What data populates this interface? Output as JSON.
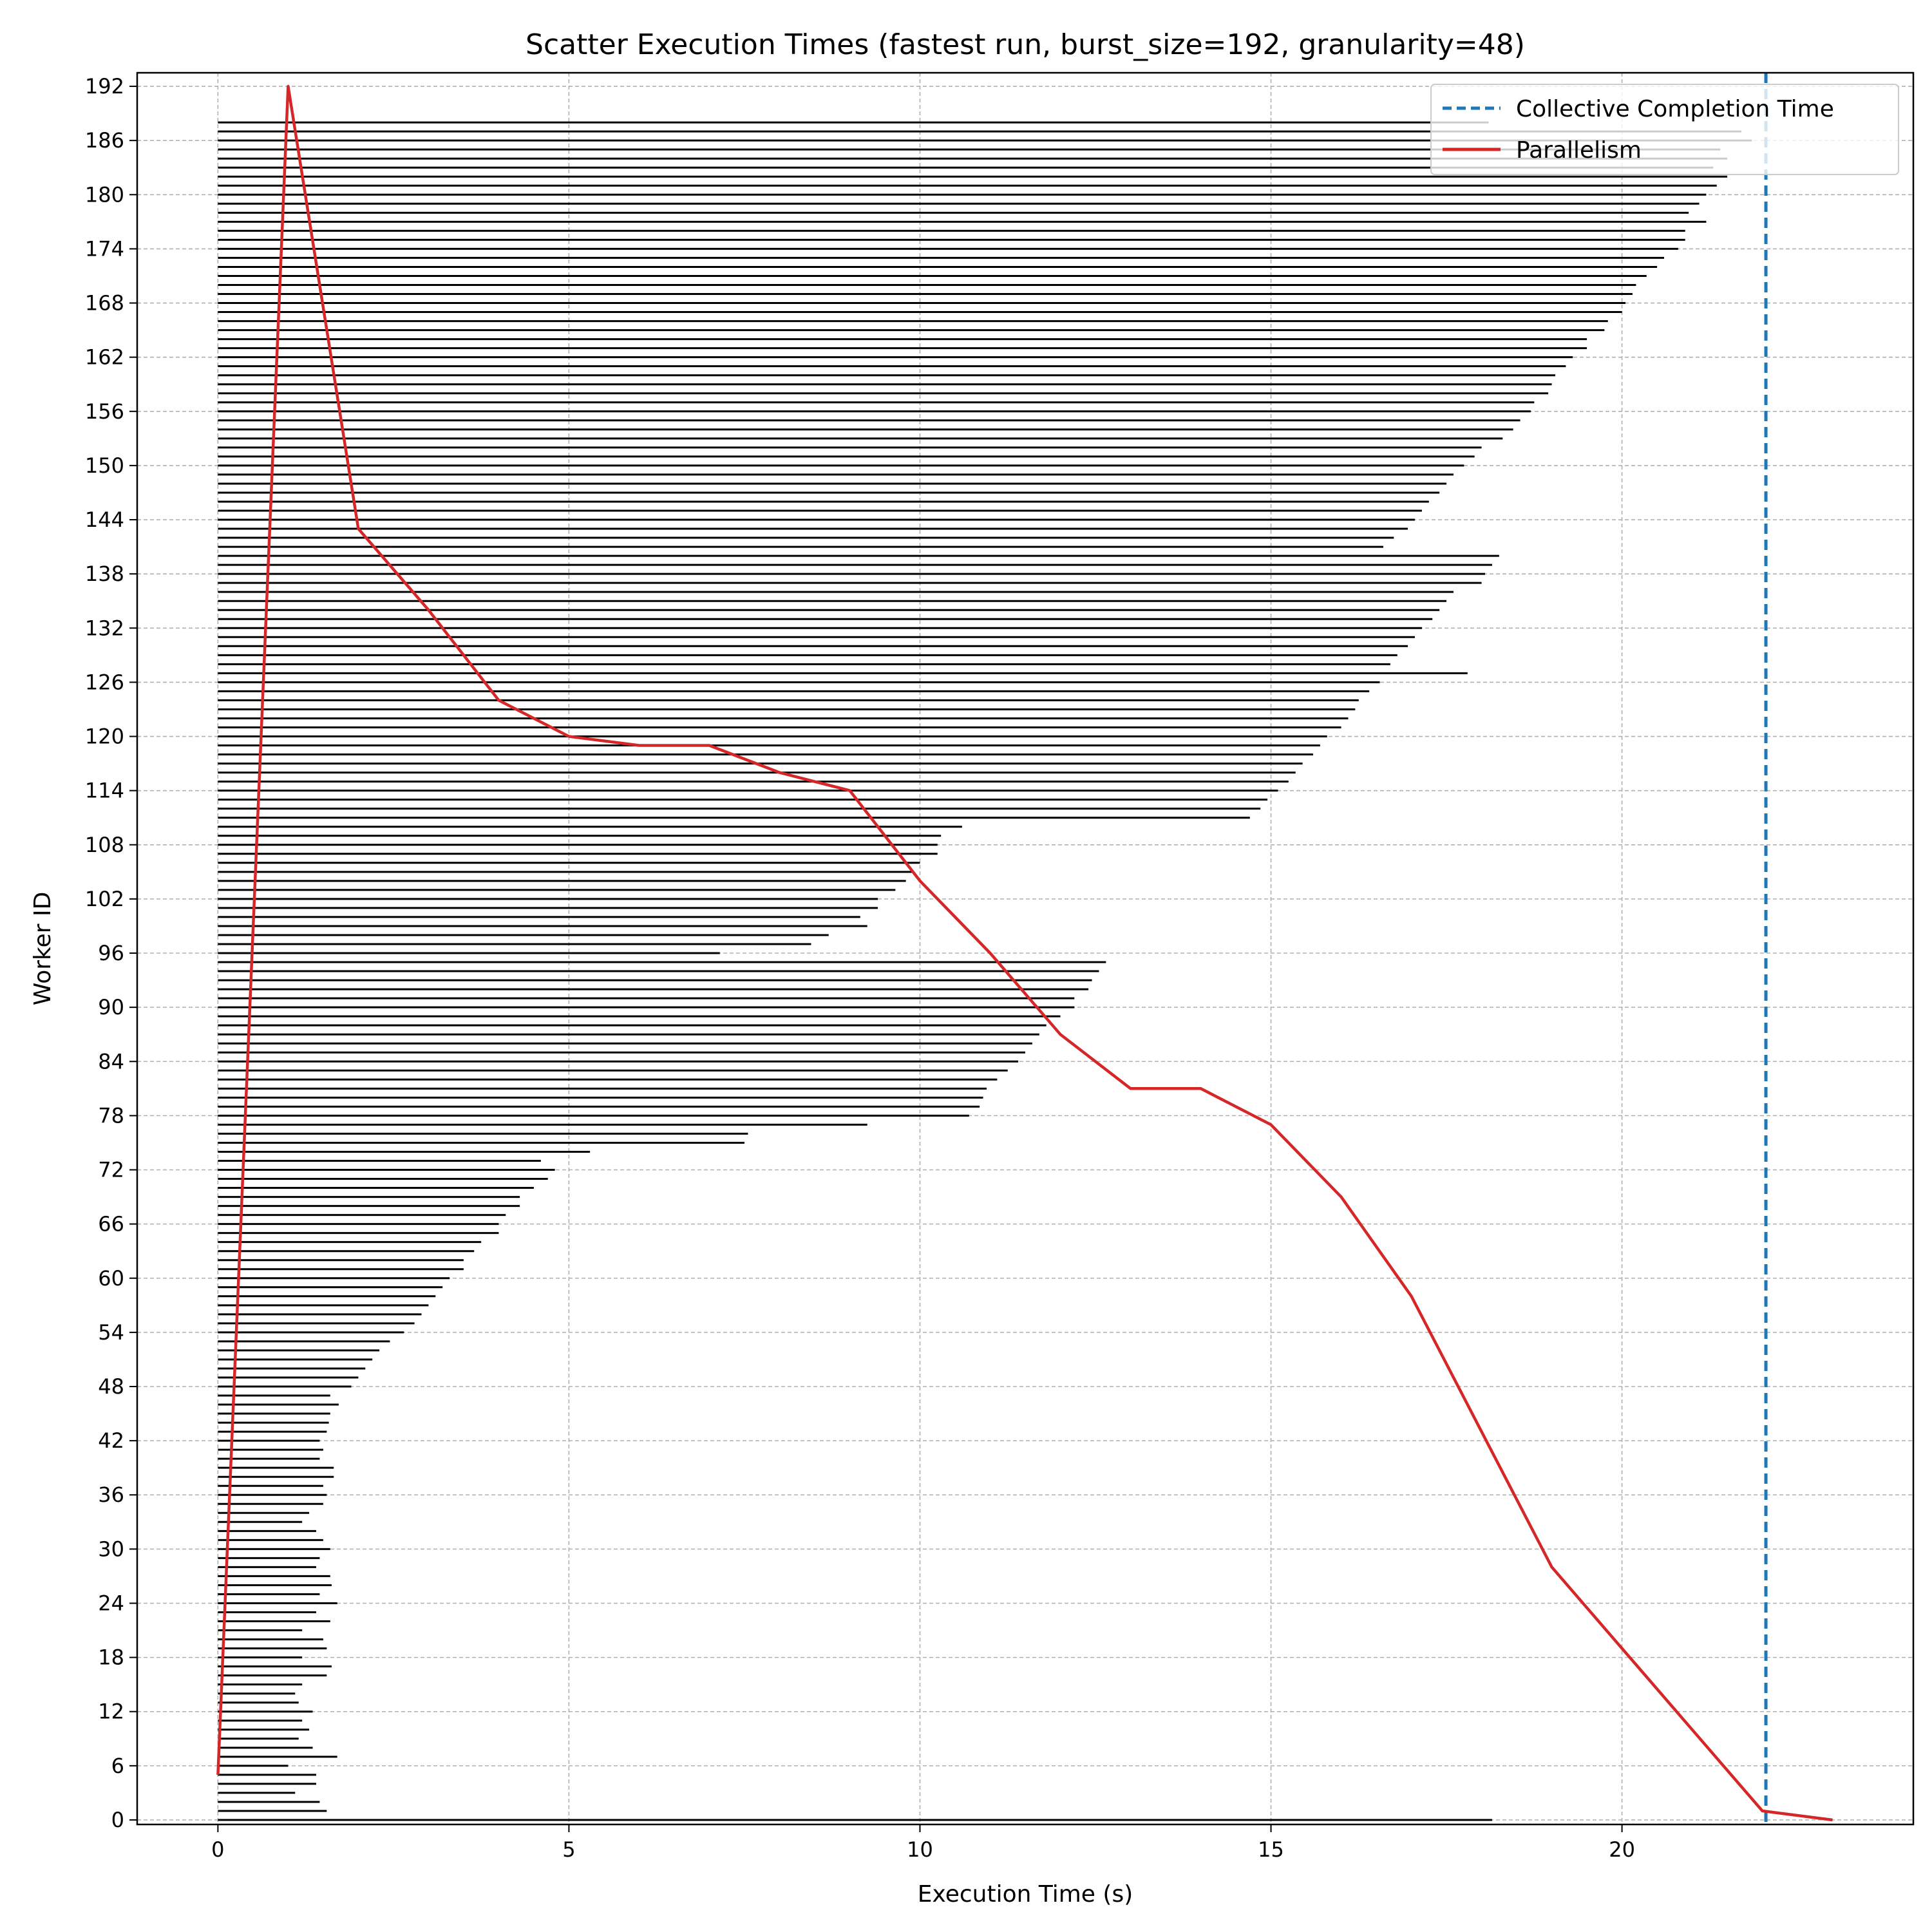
{
  "chart_data": {
    "type": "barh+line",
    "title": "Scatter Execution Times (fastest run, burst_size=192, granularity=48)",
    "xlabel": "Execution Time (s)",
    "ylabel": "Worker ID",
    "xlim": [
      -1.15,
      24.15
    ],
    "ylim": [
      -0.5,
      193.5
    ],
    "grid": true,
    "x_ticks": [
      0,
      5,
      10,
      15,
      20
    ],
    "y_ticks": [
      0,
      6,
      12,
      18,
      24,
      30,
      36,
      42,
      48,
      54,
      60,
      66,
      72,
      78,
      84,
      90,
      96,
      102,
      108,
      114,
      120,
      126,
      132,
      138,
      144,
      150,
      156,
      162,
      168,
      174,
      180,
      186,
      192
    ],
    "worker_durations": {
      "start": 0,
      "values": [
        18.15,
        1.55,
        1.45,
        1.1,
        1.4,
        1.4,
        1.0,
        1.7,
        1.35,
        1.15,
        1.3,
        1.2,
        1.35,
        1.15,
        1.1,
        1.2,
        1.55,
        1.62,
        1.2,
        1.55,
        1.5,
        1.2,
        1.6,
        1.4,
        1.7,
        1.45,
        1.62,
        1.6,
        1.4,
        1.45,
        1.6,
        1.5,
        1.4,
        1.2,
        1.3,
        1.5,
        1.55,
        1.5,
        1.65,
        1.65,
        1.45,
        1.5,
        1.45,
        1.55,
        1.58,
        1.6,
        1.72,
        1.6,
        1.9,
        2.0,
        2.1,
        2.2,
        2.3,
        2.45,
        2.65,
        2.8,
        2.9,
        3.0,
        3.1,
        3.2,
        3.3,
        3.5,
        3.5,
        3.65,
        3.75,
        4.0,
        4.0,
        4.1,
        4.3,
        4.3,
        4.5,
        4.7,
        4.8,
        4.6,
        5.3,
        7.5,
        7.55,
        9.25,
        10.7,
        10.85,
        10.9,
        10.95,
        11.1,
        11.25,
        11.4,
        11.5,
        11.6,
        11.7,
        11.8,
        12.0,
        12.2,
        12.2,
        12.4,
        12.45,
        12.55,
        12.65,
        7.15,
        8.45,
        8.7,
        9.25,
        9.15,
        9.4,
        9.4,
        9.65,
        9.8,
        9.9,
        10.0,
        10.25,
        10.25,
        10.3,
        10.6,
        14.7,
        14.85,
        14.95,
        15.1,
        15.25,
        15.35,
        15.45,
        15.6,
        15.7,
        15.8,
        16.0,
        16.1,
        16.2,
        16.25,
        16.4,
        16.55,
        17.8,
        16.7,
        16.8,
        16.95,
        17.05,
        17.15,
        17.3,
        17.4,
        17.5,
        17.6,
        18.0,
        18.05,
        18.15,
        18.25,
        16.6,
        16.75,
        16.95,
        17.05,
        17.15,
        17.25,
        17.4,
        17.5,
        17.6,
        17.75,
        17.9,
        18.0,
        18.3,
        18.45,
        18.55,
        18.7,
        18.75,
        18.95,
        19.0,
        19.05,
        19.2,
        19.3,
        19.5,
        19.5,
        19.75,
        19.8,
        20.0,
        20.05,
        20.15,
        20.2,
        20.35,
        20.5,
        20.6,
        20.8,
        20.9,
        20.9,
        21.2,
        20.95,
        21.1,
        21.2,
        21.35,
        21.5,
        21.3,
        21.5,
        21.4,
        21.85,
        21.7,
        18.1
      ]
    },
    "series": [
      {
        "name": "Collective Completion Time",
        "style": "dashed vertical line",
        "color": "#1f77b4",
        "x": 22.05
      },
      {
        "name": "Parallelism",
        "style": "solid line",
        "color": "#d62728",
        "x": [
          0,
          1,
          2,
          3,
          4,
          5,
          6,
          7,
          8,
          9,
          10,
          11,
          12,
          13,
          14,
          15,
          16,
          17,
          18,
          19,
          20,
          21,
          22,
          23
        ],
        "y": [
          5,
          192,
          143,
          134,
          124,
          120,
          119,
          119,
          116,
          114,
          104,
          96,
          87,
          81,
          81,
          77,
          69,
          58,
          43,
          28,
          19,
          10,
          1,
          0
        ]
      }
    ],
    "legend": {
      "position": "top-right",
      "entries": [
        "Collective Completion Time",
        "Parallelism"
      ]
    }
  }
}
